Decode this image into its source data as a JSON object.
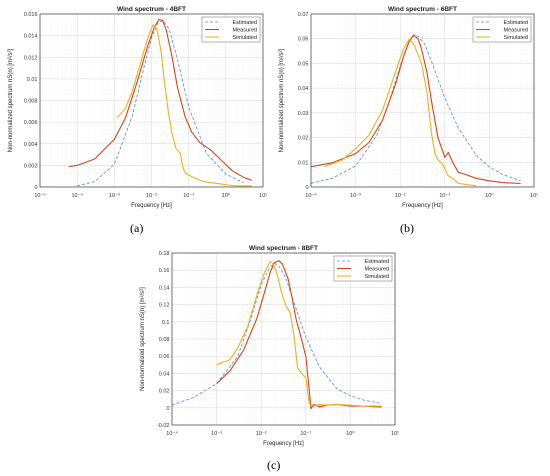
{
  "figure": {
    "captions": [
      "(a)",
      "(b)",
      "(c)"
    ]
  },
  "legend_colors": {
    "Estimated": "#3f8fd6",
    "Measured": "#d9431c",
    "Simulated": "#edb11a"
  },
  "chart_data": [
    {
      "type": "line",
      "title": "Wind spectrum - 4BFT",
      "xlabel": "Frequency [Hz]",
      "ylabel": "Non-normalized spectrum nS(n) [m²/s²]",
      "xscale": "log",
      "xlim": [
        1e-05,
        10
      ],
      "ylim": [
        0,
        0.016
      ],
      "xticks": [
        1e-05,
        0.0001,
        0.001,
        0.01,
        0.1,
        1,
        10
      ],
      "xtick_labels": [
        "10⁻⁵",
        "10⁻⁴",
        "10⁻³",
        "10⁻²",
        "10⁻¹",
        "10⁰",
        "10¹"
      ],
      "yticks": [
        0,
        0.002,
        0.004,
        0.006,
        0.008,
        0.01,
        0.012,
        0.014,
        0.016
      ],
      "ytick_labels": [
        "0",
        "0.002",
        "0.004",
        "0.006",
        "0.008",
        "0.01",
        "0.012",
        "0.014",
        "0.016"
      ],
      "grid": true,
      "legend_position": "top-right",
      "series": [
        {
          "name": "Estimated",
          "style": "dashed",
          "x": [
            0.0001,
            0.0003,
            0.001,
            0.003,
            0.006,
            0.01,
            0.015,
            0.02,
            0.03,
            0.05,
            0.1,
            0.3,
            1,
            3
          ],
          "y": [
            0.0001,
            0.0005,
            0.0021,
            0.0065,
            0.0108,
            0.0138,
            0.0152,
            0.0154,
            0.0146,
            0.0118,
            0.0074,
            0.0031,
            0.0012,
            0.0004
          ]
        },
        {
          "name": "Measured",
          "style": "solid",
          "x": [
            6e-05,
            0.0001,
            0.0003,
            0.001,
            0.002,
            0.004,
            0.008,
            0.012,
            0.016,
            0.02,
            0.025,
            0.035,
            0.05,
            0.08,
            0.12,
            0.2,
            0.4,
            0.8,
            1.5,
            3,
            5
          ],
          "y": [
            0.0019,
            0.002,
            0.0026,
            0.0044,
            0.0064,
            0.0096,
            0.0131,
            0.0148,
            0.0155,
            0.0154,
            0.0145,
            0.0122,
            0.0092,
            0.0065,
            0.0051,
            0.0041,
            0.0034,
            0.0024,
            0.0015,
            0.0009,
            0.0006
          ]
        },
        {
          "name": "Simulated",
          "style": "solid",
          "x": [
            0.0012,
            0.002,
            0.003,
            0.005,
            0.008,
            0.011,
            0.014,
            0.018,
            0.022,
            0.028,
            0.035,
            0.045,
            0.06,
            0.07,
            0.08,
            0.1,
            0.15,
            0.25,
            0.4,
            0.7,
            1,
            2,
            5
          ],
          "y": [
            0.0064,
            0.0073,
            0.0088,
            0.0114,
            0.0138,
            0.015,
            0.0146,
            0.0126,
            0.0099,
            0.0071,
            0.0051,
            0.0036,
            0.0031,
            0.0018,
            0.0013,
            0.0011,
            0.0008,
            0.0005,
            0.0004,
            0.0003,
            0.0002,
            0.0001,
            0.0001
          ]
        }
      ]
    },
    {
      "type": "line",
      "title": "Wind spectrum - 6BFT",
      "xlabel": "Frequency [Hz]",
      "ylabel": "Non-normalized spectrum nS(n) [m²/s²]",
      "xscale": "log",
      "xlim": [
        0.0001,
        10
      ],
      "ylim": [
        0,
        0.07
      ],
      "xticks": [
        0.0001,
        0.001,
        0.01,
        0.1,
        1,
        10
      ],
      "xtick_labels": [
        "10⁻⁴",
        "10⁻³",
        "10⁻²",
        "10⁻¹",
        "10⁰",
        "10¹"
      ],
      "yticks": [
        0,
        0.01,
        0.02,
        0.03,
        0.04,
        0.05,
        0.06,
        0.07
      ],
      "ytick_labels": [
        "0",
        "0.01",
        "0.02",
        "0.03",
        "0.04",
        "0.05",
        "0.06",
        "0.07"
      ],
      "grid": true,
      "legend_position": "top-right",
      "series": [
        {
          "name": "Estimated",
          "style": "dashed",
          "x": [
            0.0001,
            0.0003,
            0.001,
            0.003,
            0.006,
            0.01,
            0.015,
            0.02,
            0.025,
            0.035,
            0.05,
            0.1,
            0.2,
            0.5,
            1,
            2,
            5
          ],
          "y": [
            0.0015,
            0.0035,
            0.0085,
            0.021,
            0.036,
            0.049,
            0.058,
            0.0612,
            0.061,
            0.058,
            0.051,
            0.036,
            0.024,
            0.013,
            0.008,
            0.005,
            0.0025
          ]
        },
        {
          "name": "Measured",
          "style": "solid",
          "x": [
            0.0001,
            0.0003,
            0.001,
            0.002,
            0.004,
            0.008,
            0.012,
            0.016,
            0.02,
            0.025,
            0.03,
            0.04,
            0.05,
            0.07,
            0.1,
            0.12,
            0.15,
            0.2,
            0.3,
            0.5,
            1,
            2,
            5
          ],
          "y": [
            0.0082,
            0.0098,
            0.0135,
            0.018,
            0.027,
            0.042,
            0.053,
            0.059,
            0.0615,
            0.06,
            0.056,
            0.046,
            0.035,
            0.02,
            0.012,
            0.014,
            0.01,
            0.006,
            0.005,
            0.0035,
            0.0025,
            0.0018,
            0.0014
          ]
        },
        {
          "name": "Simulated",
          "style": "solid",
          "x": [
            0.0002,
            0.0005,
            0.001,
            0.002,
            0.004,
            0.008,
            0.012,
            0.016,
            0.02,
            0.03,
            0.04,
            0.05,
            0.06,
            0.07,
            0.09,
            0.12,
            0.15,
            0.2,
            0.3,
            0.5
          ],
          "y": [
            0.0082,
            0.011,
            0.0155,
            0.021,
            0.031,
            0.047,
            0.056,
            0.0598,
            0.058,
            0.05,
            0.038,
            0.022,
            0.0135,
            0.011,
            0.009,
            0.0045,
            0.0035,
            0.0015,
            0.001,
            0.0005
          ]
        }
      ]
    },
    {
      "type": "line",
      "title": "Wind spectrum - 8BFT",
      "xlabel": "Frequency [Hz]",
      "ylabel": "Non-normalized spectrum nS(n) [m²/s²]",
      "xscale": "log",
      "xlim": [
        0.0001,
        10
      ],
      "ylim": [
        -0.02,
        0.18
      ],
      "xticks": [
        0.0001,
        0.001,
        0.01,
        0.1,
        1,
        10
      ],
      "xtick_labels": [
        "10⁻⁴",
        "10⁻³",
        "10⁻²",
        "10⁻¹",
        "10⁰",
        "10¹"
      ],
      "yticks": [
        -0.02,
        0,
        0.02,
        0.04,
        0.06,
        0.08,
        0.1,
        0.12,
        0.14,
        0.16,
        0.18
      ],
      "ytick_labels": [
        "-0.02",
        "0",
        "0.02",
        "0.04",
        "0.06",
        "0.08",
        "0.1",
        "0.12",
        "0.14",
        "0.16",
        "0.18"
      ],
      "grid": true,
      "legend_position": "top-right",
      "series": [
        {
          "name": "Estimated",
          "style": "dashed",
          "x": [
            0.0001,
            0.0003,
            0.001,
            0.003,
            0.006,
            0.01,
            0.015,
            0.02,
            0.025,
            0.035,
            0.05,
            0.1,
            0.2,
            0.5,
            1,
            2,
            5
          ],
          "y": [
            0.003,
            0.012,
            0.028,
            0.06,
            0.105,
            0.143,
            0.162,
            0.168,
            0.165,
            0.152,
            0.128,
            0.082,
            0.048,
            0.022,
            0.014,
            0.009,
            0.005
          ]
        },
        {
          "name": "Measured",
          "style": "solid",
          "x": [
            0.001,
            0.002,
            0.004,
            0.008,
            0.012,
            0.016,
            0.02,
            0.025,
            0.03,
            0.04,
            0.05,
            0.06,
            0.08,
            0.1,
            0.12,
            0.13,
            0.15,
            0.2,
            0.3,
            0.5,
            1,
            2,
            5
          ],
          "y": [
            0.028,
            0.043,
            0.067,
            0.104,
            0.135,
            0.158,
            0.169,
            0.171,
            0.167,
            0.15,
            0.126,
            0.104,
            0.08,
            0.06,
            0.02,
            -0.001,
            0.004,
            0.001,
            0.003,
            0.004,
            0.002,
            0.002,
            0.001
          ]
        },
        {
          "name": "Simulated",
          "style": "solid",
          "x": [
            0.001,
            0.002,
            0.003,
            0.005,
            0.008,
            0.012,
            0.016,
            0.018,
            0.022,
            0.028,
            0.035,
            0.045,
            0.055,
            0.065,
            0.08,
            0.1,
            0.12,
            0.15,
            0.2,
            0.3,
            0.5,
            1,
            2,
            5
          ],
          "y": [
            0.05,
            0.056,
            0.07,
            0.095,
            0.131,
            0.158,
            0.17,
            0.168,
            0.158,
            0.136,
            0.12,
            0.11,
            0.082,
            0.047,
            0.04,
            0.035,
            0.005,
            0.002,
            0.004,
            0.003,
            0.004,
            0.003,
            0.002,
            0.002
          ]
        }
      ]
    }
  ]
}
